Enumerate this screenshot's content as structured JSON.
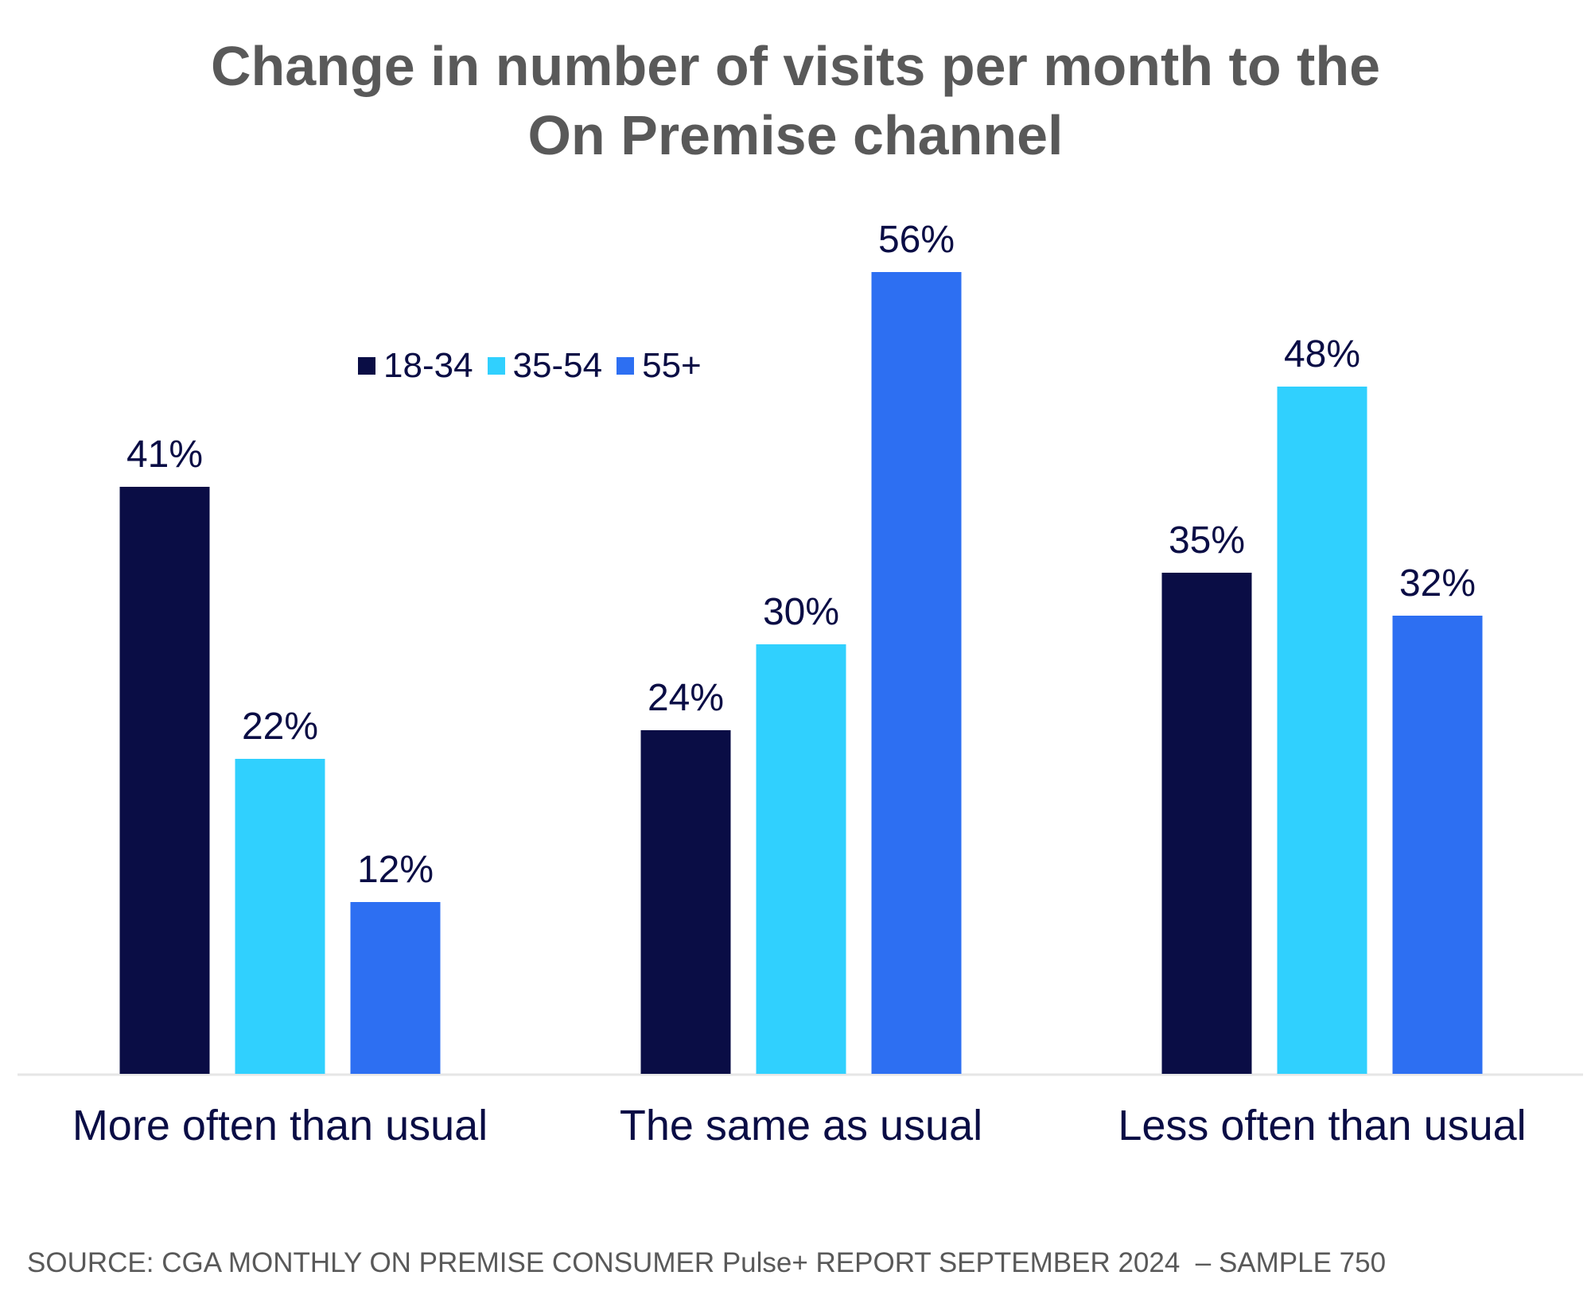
{
  "chart_data": {
    "type": "bar",
    "title_lines": [
      "Change in number of visits per month to the",
      "On Premise channel"
    ],
    "categories": [
      "More often than usual",
      "The same as usual",
      "Less often than usual"
    ],
    "series": [
      {
        "name": "18-34",
        "color": "#0a0d45",
        "values": [
          41,
          24,
          35
        ],
        "labels": [
          "41%",
          "24%",
          "35%"
        ]
      },
      {
        "name": "35-54",
        "color": "#30d0fe",
        "values": [
          22,
          30,
          48
        ],
        "labels": [
          "22%",
          "30%",
          "48%"
        ]
      },
      {
        "name": "55+",
        "color": "#2d6ff2",
        "values": [
          12,
          56,
          32
        ],
        "labels": [
          "12%",
          "56%",
          "32%"
        ]
      }
    ],
    "ylim": [
      0,
      60
    ],
    "grid": false,
    "legend_position": "top-left",
    "source": "SOURCE: CGA MONTHLY ON PREMISE CONSUMER Pulse+ REPORT SEPTEMBER 2024  – SAMPLE 750"
  }
}
